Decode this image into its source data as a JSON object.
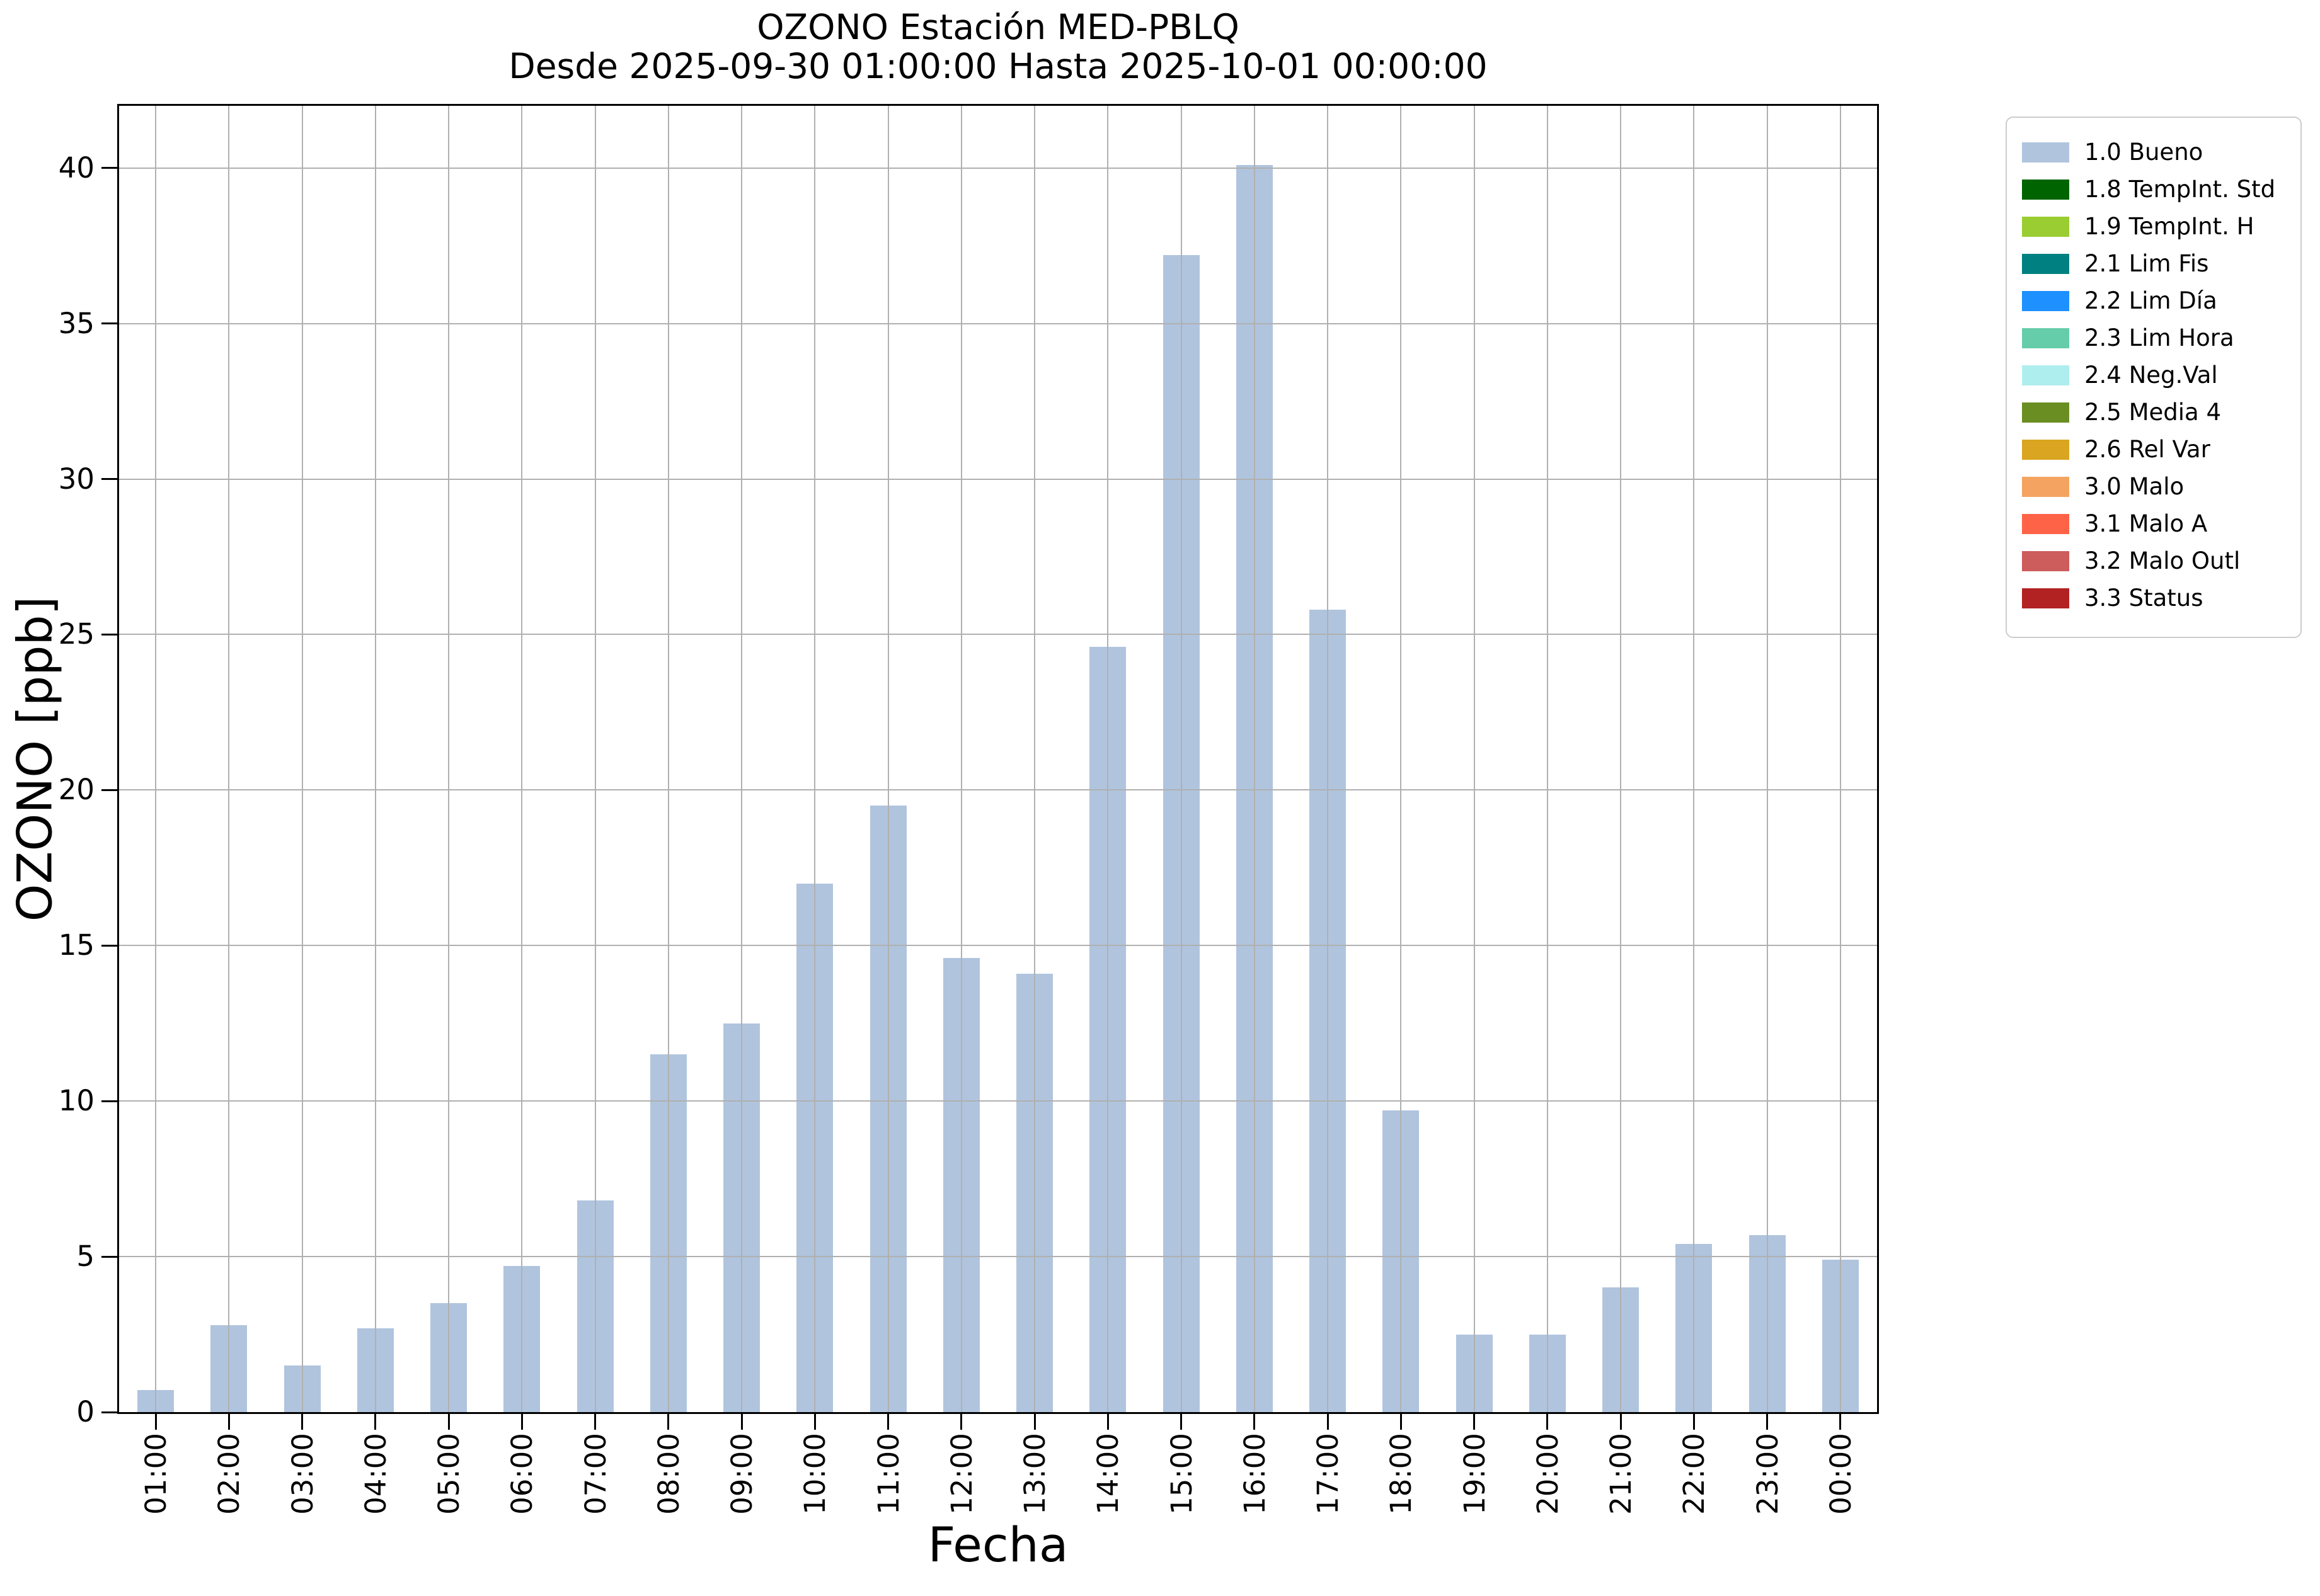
{
  "chart_data": {
    "type": "bar",
    "title": "OZONO Estación MED-PBLQ",
    "subtitle": "Desde 2025-09-30 01:00:00 Hasta 2025-10-01 00:00:00",
    "xlabel": "Fecha",
    "ylabel": "OZONO [ppb]",
    "ylim": [
      0,
      42
    ],
    "yticks": [
      0,
      5,
      10,
      15,
      20,
      25,
      30,
      35,
      40
    ],
    "grid": true,
    "legend_position": "outside-upper-right",
    "bar_color": "#b0c4de",
    "grid_color": "#b0b0b0",
    "categories": [
      "01:00",
      "02:00",
      "03:00",
      "04:00",
      "05:00",
      "06:00",
      "07:00",
      "08:00",
      "09:00",
      "10:00",
      "11:00",
      "12:00",
      "13:00",
      "14:00",
      "15:00",
      "16:00",
      "17:00",
      "18:00",
      "19:00",
      "20:00",
      "21:00",
      "22:00",
      "23:00",
      "00:00"
    ],
    "values": [
      0.7,
      2.8,
      1.5,
      2.7,
      3.5,
      4.7,
      6.8,
      11.5,
      12.5,
      17.0,
      19.5,
      14.6,
      14.1,
      24.6,
      37.2,
      40.1,
      25.8,
      9.7,
      2.5,
      2.5,
      4.0,
      5.4,
      5.7,
      4.9
    ],
    "series_name": "1.0 Bueno",
    "legend": [
      {
        "label": "1.0 Bueno",
        "color": "#b0c4de"
      },
      {
        "label": "1.8 TempInt. Std",
        "color": "#006400"
      },
      {
        "label": "1.9 TempInt. H",
        "color": "#9acd32"
      },
      {
        "label": "2.1 Lim Fis",
        "color": "#008080"
      },
      {
        "label": "2.2 Lim Día",
        "color": "#1e90ff"
      },
      {
        "label": "2.3 Lim Hora",
        "color": "#66cdaa"
      },
      {
        "label": "2.4 Neg.Val",
        "color": "#afeeee"
      },
      {
        "label": "2.5 Media 4",
        "color": "#6b8e23"
      },
      {
        "label": "2.6 Rel Var",
        "color": "#daa520"
      },
      {
        "label": "3.0 Malo",
        "color": "#f4a460"
      },
      {
        "label": "3.1 Malo A",
        "color": "#ff6347"
      },
      {
        "label": "3.2 Malo Outl",
        "color": "#cd5c5c"
      },
      {
        "label": "3.3 Status",
        "color": "#b22222"
      }
    ]
  }
}
